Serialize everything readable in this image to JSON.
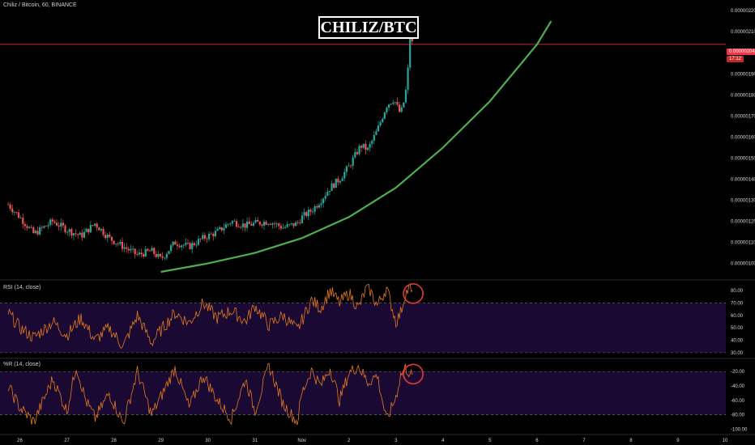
{
  "header": {
    "symbol_line": "Chiliz / Bitcoin, 60, BINANCE",
    "title": "CHILIZ/BTC"
  },
  "price_badge": {
    "price": "0.00000204",
    "countdown": "17:12"
  },
  "panes": {
    "rsi_label": "RSI (14, close)",
    "wr_label": "%R (14, close)"
  },
  "colors": {
    "background": "#000000",
    "candle_up": "#26a69a",
    "candle_down": "#ef5350",
    "trend_curve": "#4caf50",
    "indicator_line": "#e57a1c",
    "band_fill": "#1a0a33",
    "last_price_line": "#f23645",
    "highlight_circle": "#e53935"
  },
  "chart_data": [
    {
      "type": "candlestick",
      "title": "CHILIZ/BTC",
      "x_tick_labels": [
        "26",
        "27",
        "28",
        "29",
        "30",
        "31",
        "Nov",
        "2",
        "3",
        "4",
        "5",
        "6",
        "7",
        "8",
        "9",
        "10"
      ],
      "y_tick_labels": [
        "0.00000220",
        "0.00000210",
        "0.00000200",
        "0.00000190",
        "0.00000180",
        "0.00000170",
        "0.00000160",
        "0.00000150",
        "0.00000140",
        "0.00000130",
        "0.00000120",
        "0.00000110",
        "0.00000100"
      ],
      "ylim": [
        9.6e-07,
        2.22e-06
      ],
      "last_price": 2.04e-06,
      "trend_curve": {
        "x": [
          29,
          30,
          31,
          32,
          33,
          34,
          35,
          36,
          37,
          37.3
        ],
        "y": [
          9.6e-07,
          1e-06,
          1.05e-06,
          1.12e-06,
          1.22e-06,
          1.36e-06,
          1.55e-06,
          1.77e-06,
          2.04e-06,
          2.15e-06
        ]
      },
      "close_path": {
        "x": [
          25.75,
          26.0,
          26.3,
          26.7,
          27.0,
          27.3,
          27.6,
          27.9,
          28.2,
          28.5,
          28.8,
          29.0,
          29.3,
          29.6,
          29.9,
          30.2,
          30.5,
          30.8,
          31.0,
          31.3,
          31.6,
          31.9,
          32.0,
          32.2,
          32.4,
          32.6,
          32.8,
          33.0,
          33.1,
          33.25,
          33.4,
          33.6,
          33.8,
          33.95,
          34.0,
          34.05,
          34.1,
          34.15,
          34.2,
          34.25,
          34.3,
          34.35
        ],
        "y": [
          1.28e-06,
          1.22e-06,
          1.14e-06,
          1.2e-06,
          1.16e-06,
          1.13e-06,
          1.19e-06,
          1.12e-06,
          1.08e-06,
          1.04e-06,
          1.06e-06,
          1.02e-06,
          1.1e-06,
          1.08e-06,
          1.12e-06,
          1.15e-06,
          1.2e-06,
          1.18e-06,
          1.19e-06,
          1.2e-06,
          1.17e-06,
          1.19e-06,
          1.22e-06,
          1.25e-06,
          1.3e-06,
          1.36e-06,
          1.4e-06,
          1.46e-06,
          1.5e-06,
          1.56e-06,
          1.54e-06,
          1.63e-06,
          1.75e-06,
          1.78e-06,
          1.76e-06,
          1.73e-06,
          1.71e-06,
          1.75e-06,
          1.8e-06,
          1.9e-06,
          2.1e-06,
          2.04e-06
        ]
      }
    },
    {
      "type": "line",
      "title": "RSI (14, close)",
      "y_tick_labels": [
        "80.00",
        "70.00",
        "60.00",
        "50.00",
        "40.00",
        "30.00"
      ],
      "ylim": [
        26,
        86
      ],
      "bands": [
        30,
        70
      ],
      "x": [
        25.75,
        26.0,
        26.3,
        26.7,
        27.0,
        27.3,
        27.6,
        27.9,
        28.2,
        28.5,
        28.8,
        29.0,
        29.3,
        29.6,
        29.9,
        30.2,
        30.5,
        30.8,
        31.0,
        31.3,
        31.6,
        31.9,
        32.0,
        32.2,
        32.4,
        32.6,
        32.8,
        33.0,
        33.2,
        33.4,
        33.6,
        33.8,
        34.0,
        34.1,
        34.2,
        34.3,
        34.35
      ],
      "values": [
        62,
        50,
        42,
        55,
        44,
        58,
        40,
        50,
        35,
        60,
        38,
        48,
        62,
        54,
        70,
        58,
        64,
        55,
        68,
        52,
        60,
        48,
        56,
        72,
        66,
        80,
        70,
        78,
        66,
        84,
        68,
        82,
        55,
        62,
        78,
        82,
        75
      ]
    },
    {
      "type": "line",
      "title": "%R (14, close)",
      "y_tick_labels": [
        "-20.00",
        "-40.00",
        "-60.00",
        "-80.00",
        "-100.00"
      ],
      "ylim": [
        -104,
        -4
      ],
      "bands": [
        -20,
        -80
      ],
      "x": [
        25.75,
        26.0,
        26.3,
        26.7,
        27.0,
        27.2,
        27.4,
        27.6,
        27.9,
        28.2,
        28.5,
        28.8,
        29.0,
        29.3,
        29.6,
        29.9,
        30.2,
        30.5,
        30.8,
        31.0,
        31.3,
        31.6,
        31.9,
        32.0,
        32.2,
        32.4,
        32.6,
        32.8,
        33.0,
        33.2,
        33.4,
        33.6,
        33.8,
        34.0,
        34.1,
        34.2,
        34.3,
        34.35
      ],
      "values": [
        -40,
        -70,
        -90,
        -30,
        -75,
        -12,
        -60,
        -85,
        -50,
        -92,
        -20,
        -80,
        -55,
        -15,
        -70,
        -25,
        -60,
        -85,
        -30,
        -75,
        -12,
        -65,
        -90,
        -50,
        -18,
        -40,
        -15,
        -60,
        -22,
        -12,
        -35,
        -25,
        -88,
        -55,
        -25,
        -15,
        -22,
        -28
      ]
    }
  ]
}
